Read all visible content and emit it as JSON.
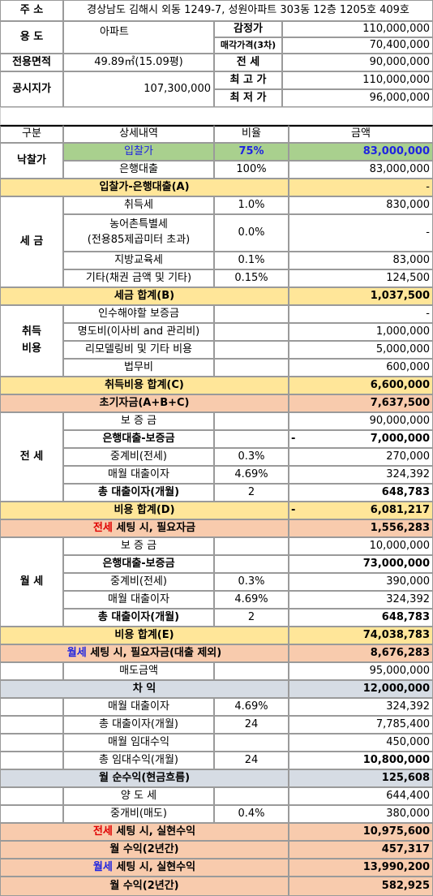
{
  "header": {
    "address_label": "주 소",
    "address": "경상남도 김해시 외동 1249-7, 성원아파트 303동 12층 1205호 409호",
    "usage_label": "용 도",
    "usage": "아파트",
    "appraisal_label": "감정가",
    "appraisal": "110,000,000",
    "sale_price_label": "매각가격(3차)",
    "sale_price": "70,400,000",
    "area_label": "전용면적",
    "area": "49.89㎡(15.09평)",
    "jeonse_label": "전 세",
    "jeonse": "90,000,000",
    "official_label": "공시지가",
    "official": "107,300,000",
    "max_label": "최 고 가",
    "max": "110,000,000",
    "min_label": "최 저 가",
    "min": "96,000,000"
  },
  "table": {
    "col_category": "구분",
    "col_detail": "상세내역",
    "col_ratio": "비율",
    "col_amount": "금액",
    "bid_group": "낙찰가",
    "bid_label": "입찰가",
    "bid_ratio": "75%",
    "bid_amount": "83,000,000",
    "loan_label": "은행대출",
    "loan_ratio": "100%",
    "loan_amount": "83,000,000",
    "bid_minus_loan_label": "입찰가-은행대출(A)",
    "bid_minus_loan_value": "-",
    "tax_group": "세 금",
    "tax_acq_label": "취득세",
    "tax_acq_ratio": "1.0%",
    "tax_acq_amount": "830,000",
    "tax_rural_label1": "농어촌특별세",
    "tax_rural_label2": "(전용85제곱미터 초과)",
    "tax_rural_ratio": "0.0%",
    "tax_rural_amount": "-",
    "tax_edu_label": "지방교육세",
    "tax_edu_ratio": "0.1%",
    "tax_edu_amount": "83,000",
    "tax_etc_label": "기타(채권 금액 및 기타)",
    "tax_etc_ratio": "0.15%",
    "tax_etc_amount": "124,500",
    "tax_total_label": "세금 합계(B)",
    "tax_total_value": "1,037,500",
    "acq_group_1": "취득",
    "acq_group_2": "비용",
    "acq_deposit_label": "인수해야할 보증금",
    "acq_deposit_amount": "-",
    "acq_moving_label": "명도비(이사비 and 관리비)",
    "acq_moving_amount": "1,000,000",
    "acq_remodel_label": "리모델링비 및 기타 비용",
    "acq_remodel_amount": "5,000,000",
    "acq_legal_label": "법무비",
    "acq_legal_amount": "600,000",
    "acq_total_label": "취득비용 합계(C)",
    "acq_total_value": "6,600,000",
    "init_label": "초기자금(A+B+C)",
    "init_value": "7,637,500",
    "js_group": "전 세",
    "js_deposit_label": "보 증 금",
    "js_deposit_amount": "90,000,000",
    "js_loan_deposit_label": "은행대출-보증금",
    "js_loan_deposit_dash": "-",
    "js_loan_deposit_amount": "7,000,000",
    "js_broker_label": "중계비(전세)",
    "js_broker_ratio": "0.3%",
    "js_broker_amount": "270,000",
    "js_interest_label": "매월 대출이자",
    "js_interest_ratio": "4.69%",
    "js_interest_amount": "324,392",
    "js_total_interest_label": "총 대출이자(개월)",
    "js_total_interest_months": "2",
    "js_total_interest_amount": "648,783",
    "js_cost_total_label": "비용 합계(D)",
    "js_cost_total_dash": "-",
    "js_cost_total_value": "6,081,217",
    "js_need_word": "전세",
    "js_need_rest": " 세팅 시, 필요자금",
    "js_need_value": "1,556,283",
    "ws_group": "월 세",
    "ws_deposit_label": "보 증 금",
    "ws_deposit_amount": "10,000,000",
    "ws_loan_deposit_label": "은행대출-보증금",
    "ws_loan_deposit_amount": "73,000,000",
    "ws_broker_label": "중계비(전세)",
    "ws_broker_ratio": "0.3%",
    "ws_broker_amount": "390,000",
    "ws_interest_label": "매월 대출이자",
    "ws_interest_ratio": "4.69%",
    "ws_interest_amount": "324,392",
    "ws_total_interest_label": "총 대출이자(개월)",
    "ws_total_interest_months": "2",
    "ws_total_interest_amount": "648,783",
    "ws_cost_total_label": "비용 합계(E)",
    "ws_cost_total_value": "74,038,783",
    "ws_need_word": "월세",
    "ws_need_rest": " 세팅 시, 필요자금(대출 제외)",
    "ws_need_value": "8,676,283",
    "sale_label": "매도금액",
    "sale_amount": "95,000,000",
    "profit_label": "차 익",
    "profit_value": "12,000,000",
    "month_interest_label": "매월 대출이자",
    "month_interest_ratio": "4.69%",
    "month_interest_amount": "324,392",
    "total_interest_label": "총 대출이자(개월)",
    "total_interest_months": "24",
    "total_interest_amount": "7,785,400",
    "month_rent_label": "매월 임대수익",
    "month_rent_amount": "450,000",
    "total_rent_label": "총 임대수익(개월)",
    "total_rent_months": "24",
    "total_rent_amount": "10,800,000",
    "net_label": "월 순수익(현금흐름)",
    "net_value": "125,608",
    "transfer_label": "양 도 세",
    "transfer_amount": "644,400",
    "broker_sale_label": "중개비(매도)",
    "broker_sale_ratio": "0.4%",
    "broker_sale_amount": "380,000",
    "js_real_word": "전세",
    "js_real_rest": " 세팅 시, 실현수익",
    "js_real_value": "10,975,600",
    "js_monthly_label": "월 수익(2년간)",
    "js_monthly_value": "457,317",
    "ws_real_word": "월세",
    "ws_real_rest": " 세팅 시, 실현수익",
    "ws_real_value": "13,990,200",
    "ws_monthly_label": "월 수익(2년간)",
    "ws_monthly_value": "582,925"
  },
  "colors": {
    "green_fill": "#a9d08e",
    "yellow_fill": "#ffe699",
    "salmon_fill": "#f8cbad",
    "gray_fill": "#d6dce4",
    "blue_text": "#1f24e0",
    "red_text": "#e00000"
  }
}
